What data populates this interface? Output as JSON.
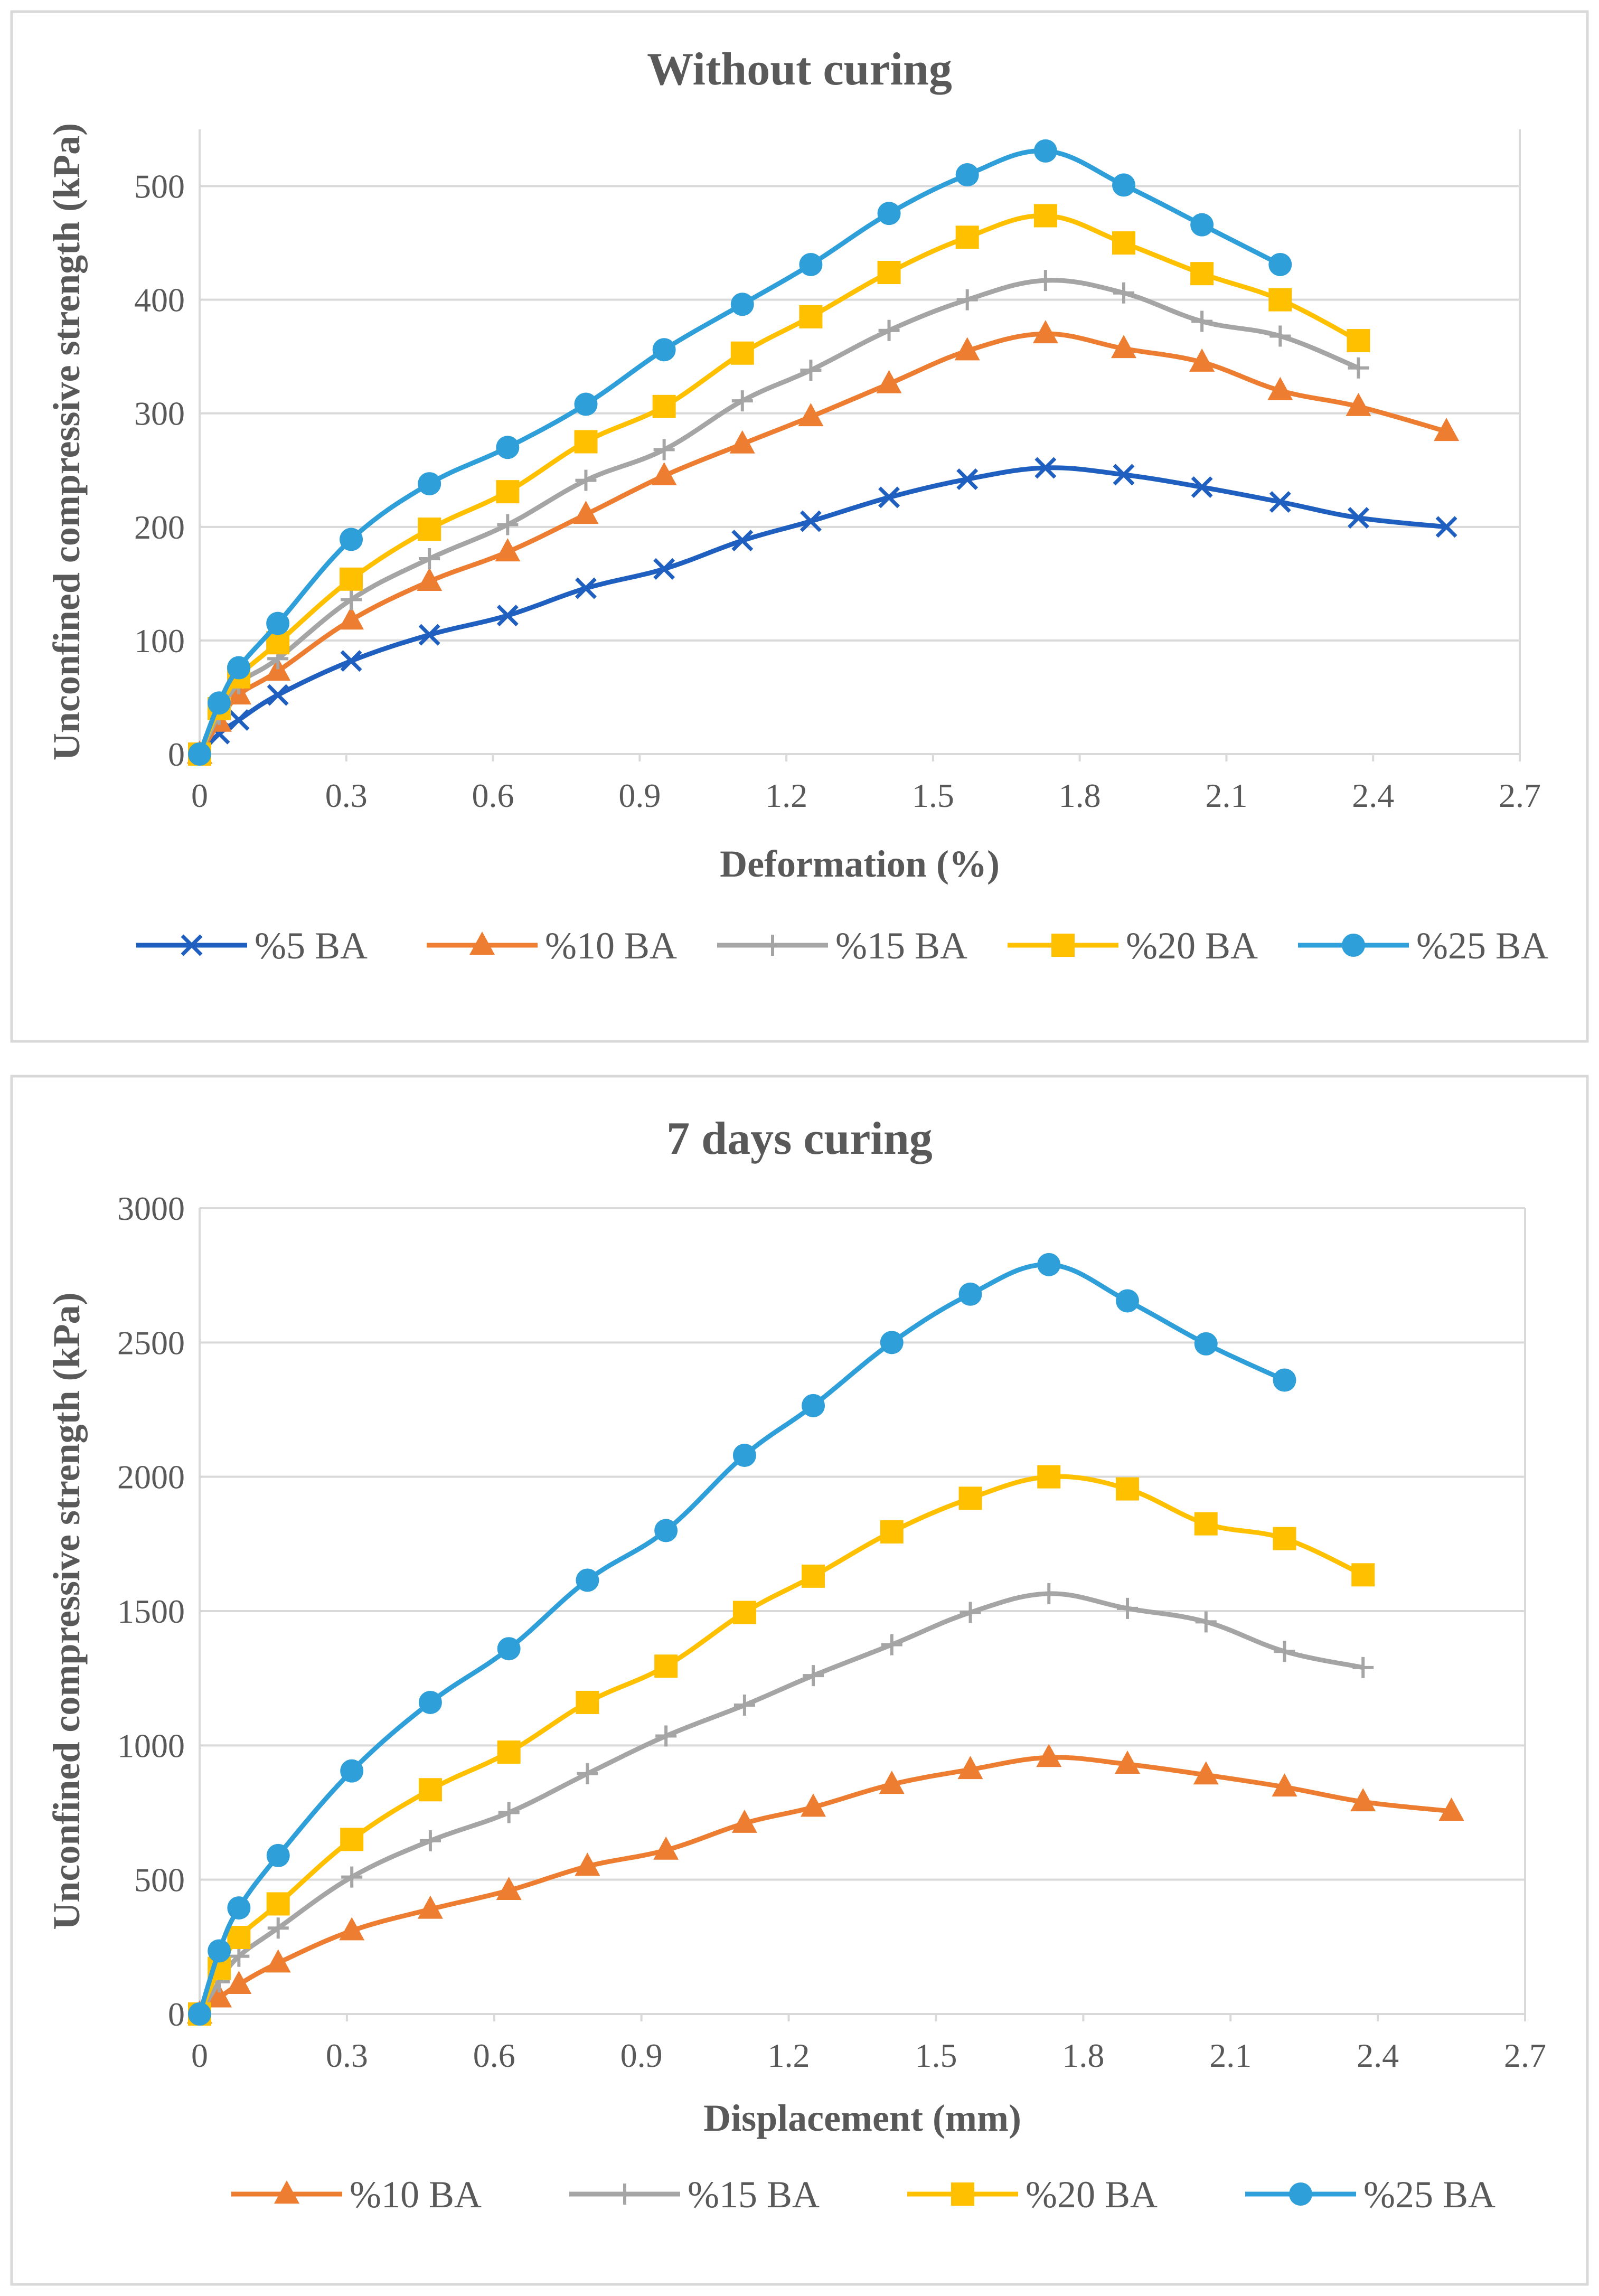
{
  "chart_data": [
    {
      "type": "line",
      "title": "Without curing",
      "xlabel": "Deformation (%)",
      "ylabel": "Unconfined compressive strength (kPa)",
      "xlim": [
        0,
        2.7
      ],
      "ylim": [
        0,
        550
      ],
      "xticks": [
        "0",
        "0.3",
        "0.6",
        "0.9",
        "1.2",
        "1.5",
        "1.8",
        "2.1",
        "2.4",
        "2.7"
      ],
      "xtick_values": [
        0,
        0.3,
        0.6,
        0.9,
        1.2,
        1.5,
        1.8,
        2.1,
        2.4,
        2.7
      ],
      "yticks": [
        "0",
        "100",
        "200",
        "300",
        "400",
        "500"
      ],
      "ytick_values": [
        0,
        100,
        200,
        300,
        400,
        500
      ],
      "grid": true,
      "legend_position": "bottom",
      "series": [
        {
          "name": "%5 BA",
          "color": "#1f5fbf",
          "marker": "x",
          "x": [
            0,
            0.04,
            0.08,
            0.16,
            0.31,
            0.47,
            0.63,
            0.79,
            0.95,
            1.11,
            1.25,
            1.41,
            1.57,
            1.73,
            1.89,
            2.05,
            2.21,
            2.37,
            2.55
          ],
          "y": [
            0,
            18,
            30,
            52,
            82,
            105,
            122,
            146,
            163,
            188,
            205,
            226,
            242,
            252,
            246,
            235,
            222,
            208,
            200
          ]
        },
        {
          "name": "%10 BA",
          "color": "#ed7d31",
          "marker": "triangle",
          "x": [
            0,
            0.04,
            0.08,
            0.16,
            0.31,
            0.47,
            0.63,
            0.79,
            0.95,
            1.11,
            1.25,
            1.41,
            1.57,
            1.73,
            1.89,
            2.05,
            2.21,
            2.37,
            2.55
          ],
          "y": [
            0,
            28,
            52,
            73,
            118,
            152,
            178,
            211,
            245,
            273,
            297,
            326,
            355,
            370,
            357,
            345,
            320,
            306,
            284
          ]
        },
        {
          "name": "%15 BA",
          "color": "#a5a5a5",
          "marker": "plus",
          "x": [
            0,
            0.04,
            0.08,
            0.16,
            0.31,
            0.47,
            0.63,
            0.79,
            0.95,
            1.11,
            1.25,
            1.41,
            1.57,
            1.73,
            1.89,
            2.05,
            2.21,
            2.37
          ],
          "y": [
            0,
            35,
            62,
            84,
            136,
            172,
            202,
            241,
            268,
            311,
            338,
            373,
            400,
            417,
            406,
            381,
            368,
            340
          ]
        },
        {
          "name": "%20 BA",
          "color": "#ffc000",
          "marker": "square",
          "x": [
            0,
            0.04,
            0.08,
            0.16,
            0.31,
            0.47,
            0.63,
            0.79,
            0.95,
            1.11,
            1.25,
            1.41,
            1.57,
            1.73,
            1.89,
            2.05,
            2.21,
            2.37
          ],
          "y": [
            0,
            40,
            68,
            98,
            154,
            198,
            231,
            275,
            306,
            353,
            385,
            424,
            455,
            474,
            450,
            423,
            400,
            364
          ]
        },
        {
          "name": "%25 BA",
          "color": "#2e9fd9",
          "marker": "circle",
          "x": [
            0,
            0.04,
            0.08,
            0.16,
            0.31,
            0.47,
            0.63,
            0.79,
            0.95,
            1.11,
            1.25,
            1.41,
            1.57,
            1.73,
            1.89,
            2.05,
            2.21
          ],
          "y": [
            0,
            45,
            76,
            115,
            189,
            238,
            270,
            308,
            356,
            396,
            431,
            476,
            510,
            531,
            501,
            466,
            431
          ]
        }
      ]
    },
    {
      "type": "line",
      "title": "7 days curing",
      "xlabel": "Displacement (mm)",
      "ylabel": "Unconfined compressive strength (kPa)",
      "xlim": [
        0,
        2.7
      ],
      "ylim": [
        0,
        3000
      ],
      "xticks": [
        "0",
        "0.3",
        "0.6",
        "0.9",
        "1.2",
        "1.5",
        "1.8",
        "2.1",
        "2.4",
        "2.7"
      ],
      "xtick_values": [
        0,
        0.3,
        0.6,
        0.9,
        1.2,
        1.5,
        1.8,
        2.1,
        2.4,
        2.7
      ],
      "yticks": [
        "0",
        "500",
        "1000",
        "1500",
        "2000",
        "2500",
        "3000"
      ],
      "ytick_values": [
        0,
        500,
        1000,
        1500,
        2000,
        2500,
        3000
      ],
      "grid": true,
      "legend_position": "bottom",
      "series": [
        {
          "name": "%10 BA",
          "color": "#ed7d31",
          "marker": "triangle",
          "x": [
            0,
            0.04,
            0.08,
            0.16,
            0.31,
            0.47,
            0.63,
            0.79,
            0.95,
            1.11,
            1.25,
            1.41,
            1.57,
            1.73,
            1.89,
            2.05,
            2.21,
            2.37,
            2.55
          ],
          "y": [
            0,
            60,
            110,
            190,
            310,
            390,
            460,
            550,
            610,
            710,
            770,
            855,
            910,
            955,
            930,
            890,
            845,
            790,
            755
          ]
        },
        {
          "name": "%15 BA",
          "color": "#a5a5a5",
          "marker": "plus",
          "x": [
            0,
            0.04,
            0.08,
            0.16,
            0.31,
            0.47,
            0.63,
            0.79,
            0.95,
            1.11,
            1.25,
            1.41,
            1.57,
            1.73,
            1.89,
            2.05,
            2.21,
            2.37
          ],
          "y": [
            0,
            120,
            215,
            320,
            510,
            645,
            750,
            895,
            1035,
            1150,
            1260,
            1375,
            1495,
            1565,
            1510,
            1460,
            1350,
            1290
          ]
        },
        {
          "name": "%20 BA",
          "color": "#ffc000",
          "marker": "square",
          "x": [
            0,
            0.04,
            0.08,
            0.16,
            0.31,
            0.47,
            0.63,
            0.79,
            0.95,
            1.11,
            1.25,
            1.41,
            1.57,
            1.73,
            1.89,
            2.05,
            2.21,
            2.37
          ],
          "y": [
            0,
            170,
            285,
            410,
            650,
            835,
            975,
            1160,
            1295,
            1495,
            1630,
            1795,
            1920,
            2000,
            1955,
            1825,
            1770,
            1635
          ]
        },
        {
          "name": "%25 BA",
          "color": "#2e9fd9",
          "marker": "circle",
          "x": [
            0,
            0.04,
            0.08,
            0.16,
            0.31,
            0.47,
            0.63,
            0.79,
            0.95,
            1.11,
            1.25,
            1.41,
            1.57,
            1.73,
            1.89,
            2.05,
            2.21
          ],
          "y": [
            0,
            235,
            395,
            590,
            905,
            1160,
            1360,
            1615,
            1800,
            2080,
            2265,
            2500,
            2680,
            2790,
            2655,
            2495,
            2360
          ]
        }
      ]
    }
  ]
}
